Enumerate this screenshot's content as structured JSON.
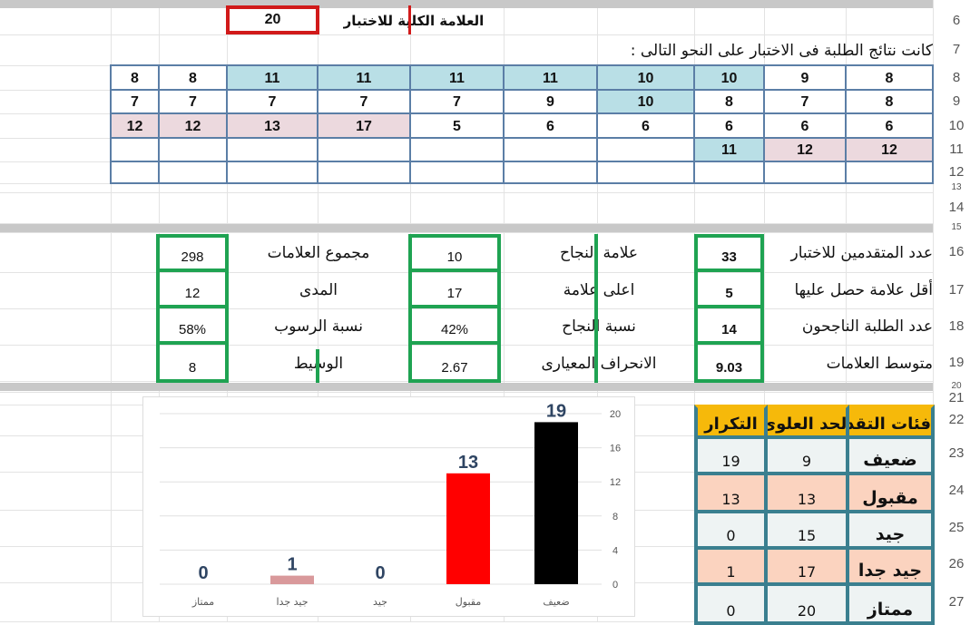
{
  "row_numbers": [
    "6",
    "7",
    "8",
    "9",
    "10",
    "11",
    "12",
    "13",
    "14",
    "15",
    "16",
    "17",
    "18",
    "19",
    "20",
    "21",
    "22",
    "23",
    "24",
    "25",
    "26",
    "27"
  ],
  "header": {
    "total_mark_label": "العلامة الكلية للاختبار",
    "total_mark_value": "20",
    "intro_text": "كانت نتائج الطلبة فى الاختبار على النحو التالى :"
  },
  "scores": {
    "rows": [
      [
        "8",
        "9",
        "10",
        "10",
        "11",
        "11",
        "11",
        "11",
        "8",
        "8"
      ],
      [
        "8",
        "7",
        "8",
        "10",
        "9",
        "7",
        "7",
        "7",
        "7",
        "7"
      ],
      [
        "6",
        "6",
        "6",
        "6",
        "6",
        "5",
        "17",
        "13",
        "12",
        "12"
      ],
      [
        "12",
        "12",
        "11",
        "",
        "",
        "",
        "",
        "",
        "",
        ""
      ],
      [
        "",
        "",
        "",
        "",
        "",
        "",
        "",
        "",
        "",
        ""
      ]
    ],
    "colors": {
      "blue": "#b9dfe6",
      "pink": "#ecd9de"
    }
  },
  "stats": [
    {
      "label": "عدد المتقدمين للاختبار",
      "value": "33"
    },
    {
      "label": "أقل علامة حصل عليها",
      "value": "5"
    },
    {
      "label": "عدد الطلبة الناجحون",
      "value": "14"
    },
    {
      "label": "متوسط العلامات",
      "value": "9.03"
    },
    {
      "label": "علامة النجاح",
      "value": "10"
    },
    {
      "label": "اعلى علامة",
      "value": "17"
    },
    {
      "label": "نسبة النجاح",
      "value": "42%"
    },
    {
      "label": "الانحراف المعيارى",
      "value": "2.67"
    },
    {
      "label": "مجموع العلامات",
      "value": "298"
    },
    {
      "label": "المدى",
      "value": "12"
    },
    {
      "label": "نسبة الرسوب",
      "value": "58%"
    },
    {
      "label": "الوسيط",
      "value": "8"
    }
  ],
  "freq_table": {
    "headers": [
      "فئات التقديرات",
      "الحد العلوى",
      "التكرار"
    ],
    "rows": [
      {
        "grade": "ضعيف",
        "upper": "9",
        "freq": "19"
      },
      {
        "grade": "مقبول",
        "upper": "13",
        "freq": "13"
      },
      {
        "grade": "جيد",
        "upper": "15",
        "freq": "0"
      },
      {
        "grade": "جيد جدا",
        "upper": "17",
        "freq": "1"
      },
      {
        "grade": "ممتاز",
        "upper": "20",
        "freq": "0"
      }
    ],
    "colors": {
      "header": "#f6b90a",
      "light": "#eef3f3",
      "peach": "#fbd3bf",
      "border": "#3a7f8f"
    }
  },
  "chart_data": {
    "type": "bar",
    "categories": [
      "ضعيف",
      "مقبول",
      "جيد",
      "جيد جدا",
      "ممتاز"
    ],
    "values": [
      19,
      13,
      0,
      1,
      0
    ],
    "colors": [
      "#000000",
      "#ff0000",
      "#cccccc",
      "#d9999b",
      "#cccccc"
    ],
    "ylim": [
      0,
      20
    ],
    "yticks": [
      "0",
      "4",
      "8",
      "12",
      "16",
      "20"
    ],
    "axis_position": "right",
    "grid": true
  }
}
